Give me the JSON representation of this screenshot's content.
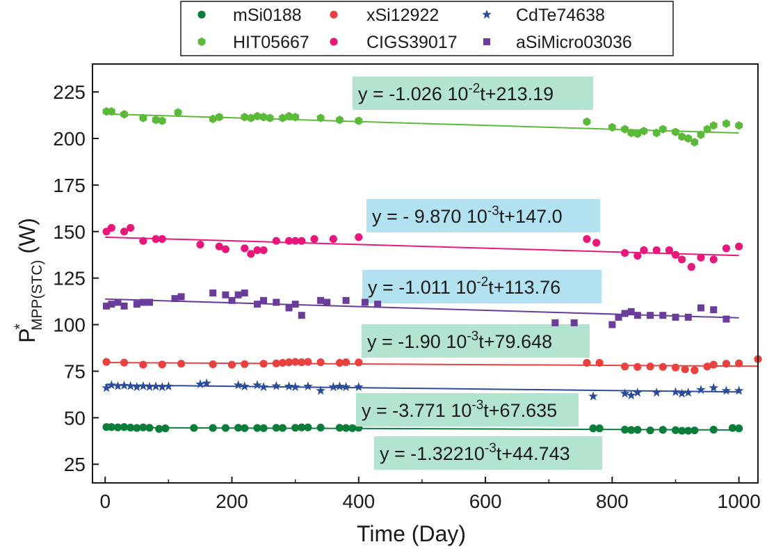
{
  "chart_data": {
    "type": "scatter",
    "title": "",
    "xlabel": "Time (Day)",
    "ylabel": {
      "base": "P",
      "superscript": "*",
      "subscript": "MPP(STC)",
      "unit": " (W)"
    },
    "xlim": [
      -20,
      1030
    ],
    "ylim": [
      15,
      240
    ],
    "xticks": [
      0,
      200,
      400,
      600,
      800,
      1000
    ],
    "yticks": [
      25,
      50,
      75,
      100,
      125,
      150,
      175,
      200,
      225
    ],
    "grid": false,
    "legend_position": "top",
    "series": [
      {
        "name": "mSi0188",
        "marker": "circle",
        "color": "#0a7d3a",
        "fit": {
          "slope": -0.001322,
          "intercept": 44.743,
          "x": [
            0,
            1000
          ],
          "label": {
            "text": "y = -1.32210",
            "exp": "-3",
            "suffix": "t+44.743"
          },
          "box": "#b3e4d0"
        },
        "points": [
          [
            2,
            45
          ],
          [
            10,
            45
          ],
          [
            20,
            44.8
          ],
          [
            30,
            45
          ],
          [
            40,
            44.7
          ],
          [
            50,
            44.5
          ],
          [
            60,
            44.8
          ],
          [
            70,
            44.6
          ],
          [
            85,
            44
          ],
          [
            95,
            44.3
          ],
          [
            140,
            44.5
          ],
          [
            170,
            44.5
          ],
          [
            190,
            44.5
          ],
          [
            210,
            44.6
          ],
          [
            220,
            44.4
          ],
          [
            240,
            44.5
          ],
          [
            250,
            44.4
          ],
          [
            270,
            44.6
          ],
          [
            280,
            44.5
          ],
          [
            300,
            44.6
          ],
          [
            310,
            44.8
          ],
          [
            320,
            44.8
          ],
          [
            340,
            44.7
          ],
          [
            370,
            44.6
          ],
          [
            380,
            44.5
          ],
          [
            390,
            44.4
          ],
          [
            400,
            44.6
          ],
          [
            770,
            44.3
          ],
          [
            780,
            44.3
          ],
          [
            820,
            43.6
          ],
          [
            830,
            43.4
          ],
          [
            840,
            43.5
          ],
          [
            860,
            43.2
          ],
          [
            880,
            43.5
          ],
          [
            900,
            43.3
          ],
          [
            910,
            43
          ],
          [
            920,
            43
          ],
          [
            930,
            43.2
          ],
          [
            960,
            43.6
          ],
          [
            990,
            44.5
          ],
          [
            1000,
            44.3
          ]
        ]
      },
      {
        "name": "xSi12922",
        "marker": "circle",
        "color": "#e8413e",
        "fit": {
          "slope": -0.0019,
          "intercept": 79.648,
          "x": [
            0,
            1030
          ],
          "label": {
            "text": "y = -1.90 10",
            "exp": "-3",
            "suffix": "t+79.648"
          },
          "box": "#b3e4d0"
        },
        "points": [
          [
            2,
            80
          ],
          [
            30,
            79.6
          ],
          [
            60,
            78.5
          ],
          [
            90,
            78.6
          ],
          [
            120,
            79
          ],
          [
            170,
            78.7
          ],
          [
            200,
            78.5
          ],
          [
            220,
            78.8
          ],
          [
            250,
            79
          ],
          [
            270,
            79.2
          ],
          [
            280,
            79.5
          ],
          [
            290,
            79.8
          ],
          [
            300,
            80
          ],
          [
            310,
            79.8
          ],
          [
            320,
            80
          ],
          [
            340,
            79.8
          ],
          [
            370,
            79.5
          ],
          [
            380,
            79.8
          ],
          [
            400,
            79.7
          ],
          [
            760,
            79.5
          ],
          [
            780,
            79.5
          ],
          [
            820,
            77.5
          ],
          [
            840,
            77.3
          ],
          [
            860,
            77.5
          ],
          [
            880,
            77.3
          ],
          [
            900,
            77
          ],
          [
            915,
            76
          ],
          [
            930,
            75.5
          ],
          [
            950,
            77.5
          ],
          [
            960,
            78.5
          ],
          [
            980,
            79
          ],
          [
            1000,
            79.2
          ],
          [
            1030,
            81.5
          ]
        ]
      },
      {
        "name": "CdTe74638",
        "marker": "star",
        "color": "#2b4c9b",
        "fit": {
          "slope": -0.003771,
          "intercept": 67.635,
          "x": [
            0,
            1000
          ],
          "label": {
            "text": "y = -3.771 10",
            "exp": "-3",
            "suffix": "t+67.635"
          },
          "box": "#b3e4d0"
        },
        "points": [
          [
            2,
            66
          ],
          [
            10,
            67.5
          ],
          [
            20,
            67
          ],
          [
            30,
            67.3
          ],
          [
            40,
            67
          ],
          [
            50,
            66.5
          ],
          [
            60,
            67
          ],
          [
            70,
            66.6
          ],
          [
            80,
            66.8
          ],
          [
            90,
            66.5
          ],
          [
            100,
            66.8
          ],
          [
            150,
            68
          ],
          [
            160,
            68.5
          ],
          [
            210,
            67.5
          ],
          [
            220,
            66.8
          ],
          [
            240,
            67.5
          ],
          [
            250,
            66.5
          ],
          [
            270,
            67
          ],
          [
            290,
            66.8
          ],
          [
            300,
            66.5
          ],
          [
            320,
            66.8
          ],
          [
            340,
            64.5
          ],
          [
            360,
            66.5
          ],
          [
            370,
            66.8
          ],
          [
            380,
            66.5
          ],
          [
            400,
            66.5
          ],
          [
            770,
            61.5
          ],
          [
            820,
            63
          ],
          [
            830,
            62
          ],
          [
            840,
            63.5
          ],
          [
            870,
            63.5
          ],
          [
            900,
            63.8
          ],
          [
            910,
            63
          ],
          [
            920,
            63.5
          ],
          [
            940,
            65
          ],
          [
            960,
            66
          ],
          [
            980,
            64.5
          ],
          [
            1000,
            64.5
          ]
        ]
      },
      {
        "name": "HIT05667",
        "marker": "hexagon",
        "color": "#5cba3a",
        "fit": {
          "slope": -0.01026,
          "intercept": 213.19,
          "x": [
            0,
            1000
          ],
          "label": {
            "text": "y = -1.026 10",
            "exp": "-2",
            "suffix": "t+213.19"
          },
          "box": "#b3e4d0"
        },
        "points": [
          [
            2,
            214.5
          ],
          [
            10,
            214.5
          ],
          [
            30,
            213
          ],
          [
            60,
            211
          ],
          [
            80,
            210
          ],
          [
            90,
            209.5
          ],
          [
            115,
            214
          ],
          [
            170,
            210.5
          ],
          [
            180,
            211.5
          ],
          [
            220,
            211.5
          ],
          [
            230,
            211
          ],
          [
            240,
            212
          ],
          [
            250,
            211.5
          ],
          [
            260,
            211
          ],
          [
            280,
            211
          ],
          [
            290,
            212
          ],
          [
            300,
            211.5
          ],
          [
            340,
            211
          ],
          [
            370,
            210
          ],
          [
            400,
            209.5
          ],
          [
            760,
            209
          ],
          [
            800,
            206
          ],
          [
            820,
            205
          ],
          [
            830,
            203
          ],
          [
            840,
            202.5
          ],
          [
            850,
            204
          ],
          [
            870,
            203
          ],
          [
            880,
            205
          ],
          [
            900,
            203.5
          ],
          [
            910,
            201
          ],
          [
            920,
            200
          ],
          [
            930,
            198
          ],
          [
            940,
            202
          ],
          [
            950,
            205
          ],
          [
            960,
            207
          ],
          [
            980,
            208
          ],
          [
            1000,
            207
          ]
        ]
      },
      {
        "name": "CIGS39017",
        "marker": "circle",
        "color": "#e8187a",
        "fit": {
          "slope": -0.00987,
          "intercept": 147.0,
          "x": [
            0,
            1000
          ],
          "label": {
            "text": "y = - 9.870 10",
            "exp": "-3",
            "suffix": "t+147.0"
          },
          "box": "#b2e1ef"
        },
        "points": [
          [
            2,
            150
          ],
          [
            10,
            152
          ],
          [
            30,
            150
          ],
          [
            40,
            152
          ],
          [
            60,
            145
          ],
          [
            80,
            146
          ],
          [
            90,
            146
          ],
          [
            150,
            143
          ],
          [
            180,
            142
          ],
          [
            190,
            140.5
          ],
          [
            220,
            141
          ],
          [
            230,
            138
          ],
          [
            240,
            140
          ],
          [
            250,
            140
          ],
          [
            270,
            145
          ],
          [
            290,
            145
          ],
          [
            300,
            145
          ],
          [
            310,
            145
          ],
          [
            330,
            146
          ],
          [
            360,
            146
          ],
          [
            400,
            147
          ],
          [
            760,
            146
          ],
          [
            775,
            144
          ],
          [
            820,
            138.5
          ],
          [
            840,
            137
          ],
          [
            850,
            140
          ],
          [
            870,
            140
          ],
          [
            890,
            140
          ],
          [
            900,
            137.5
          ],
          [
            910,
            135
          ],
          [
            925,
            131
          ],
          [
            940,
            136
          ],
          [
            960,
            135
          ],
          [
            980,
            141
          ],
          [
            1000,
            142
          ]
        ]
      },
      {
        "name": "aSiMicro03036",
        "marker": "square",
        "color": "#6a3d9a",
        "fit": {
          "slope": -0.01011,
          "intercept": 113.76,
          "x": [
            0,
            1000
          ],
          "label": {
            "text": "y = -1.011 10",
            "exp": "-2",
            "suffix": "t+113.76"
          },
          "box": "#b2e1ef"
        },
        "points": [
          [
            2,
            110
          ],
          [
            10,
            111
          ],
          [
            20,
            112
          ],
          [
            30,
            110
          ],
          [
            50,
            111
          ],
          [
            60,
            112
          ],
          [
            70,
            112
          ],
          [
            110,
            114
          ],
          [
            120,
            115
          ],
          [
            170,
            117
          ],
          [
            190,
            116
          ],
          [
            200,
            113
          ],
          [
            210,
            116
          ],
          [
            220,
            117
          ],
          [
            240,
            111
          ],
          [
            250,
            113
          ],
          [
            270,
            112
          ],
          [
            290,
            109
          ],
          [
            300,
            111
          ],
          [
            340,
            113
          ],
          [
            350,
            112
          ],
          [
            380,
            113
          ],
          [
            410,
            112
          ],
          [
            430,
            111
          ],
          [
            310,
            105
          ],
          [
            710,
            101
          ],
          [
            740,
            101
          ],
          [
            800,
            100
          ],
          [
            810,
            104
          ],
          [
            820,
            106
          ],
          [
            830,
            107
          ],
          [
            840,
            105
          ],
          [
            860,
            105
          ],
          [
            880,
            105
          ],
          [
            900,
            104
          ],
          [
            920,
            104
          ],
          [
            940,
            109
          ],
          [
            960,
            108
          ],
          [
            980,
            103
          ]
        ]
      }
    ]
  }
}
